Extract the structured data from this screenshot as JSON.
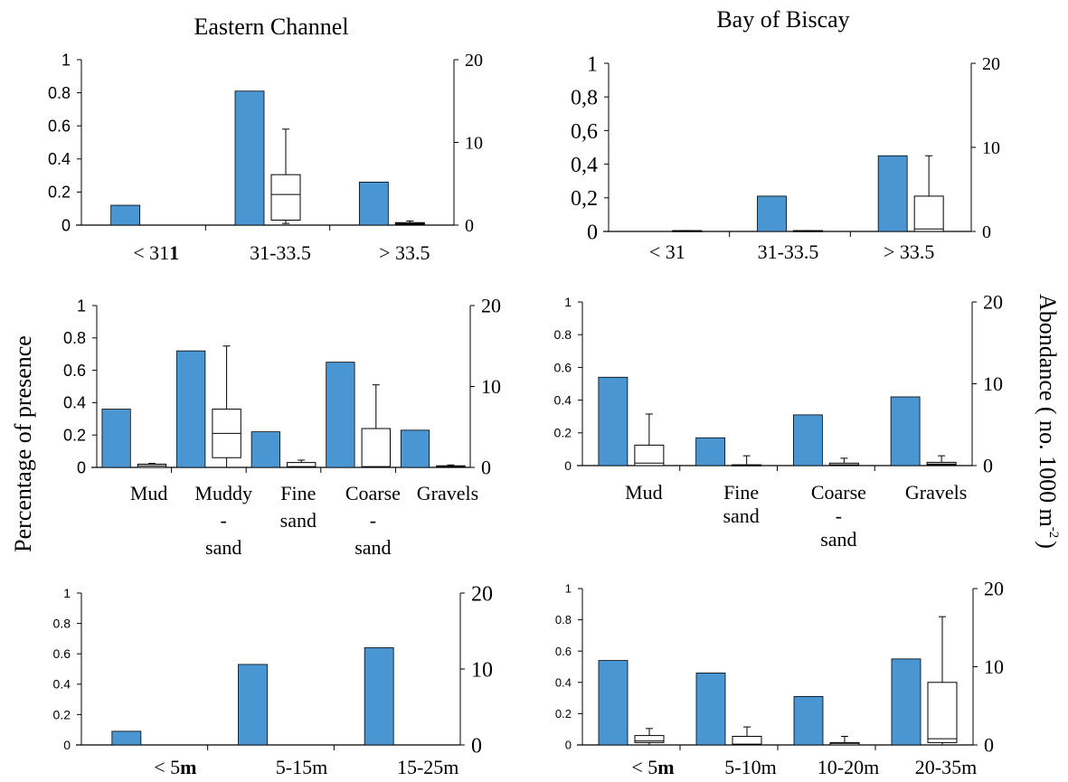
{
  "column_titles": [
    "Eastern Channel",
    "Bay of Biscay"
  ],
  "left_axis_title": "Percentage of presence",
  "right_axis_title": "Abondance ( no. 1000 m",
  "right_axis_title_sup": "-2",
  "right_axis_title_end": ")",
  "bar_color": "#4a96d2",
  "chart_data": [
    {
      "type": "bar",
      "title": "Eastern Channel",
      "categories": [
        [
          "< 31"
        ],
        [
          "31-33.5"
        ],
        [
          "> 33.5"
        ]
      ],
      "category_bold_suffix": [
        "1",
        "",
        ""
      ],
      "y_ticks": [
        "0",
        "0.2",
        "0.4",
        "0.6",
        "0.8",
        "1"
      ],
      "y2_ticks": [
        "0",
        "10",
        "20"
      ],
      "ylim": [
        0,
        1
      ],
      "y2lim": [
        0,
        20
      ],
      "presence": [
        0.12,
        0.81,
        0.26
      ],
      "abundance_boxes": [
        null,
        {
          "min": 0.2,
          "q1": 0.6,
          "median": 3.7,
          "q3": 6.1,
          "max": 11.6
        },
        {
          "min": 0.1,
          "q1": 0.1,
          "median": 0.2,
          "q3": 0.3,
          "max": 0.5
        }
      ]
    },
    {
      "type": "bar",
      "title": "Bay of Biscay",
      "categories": [
        [
          "< 31"
        ],
        [
          "31-33.5"
        ],
        [
          "> 33.5"
        ]
      ],
      "category_bold_suffix": [
        "",
        "",
        ""
      ],
      "y_ticks": [
        "0",
        "0,2",
        "0,4",
        "0,6",
        "0,8",
        "1"
      ],
      "y2_ticks": [
        "0",
        "10",
        "20"
      ],
      "ylim": [
        0,
        1
      ],
      "y2lim": [
        0,
        20
      ],
      "presence": [
        0.0,
        0.21,
        0.45
      ],
      "abundance_boxes": [
        {
          "min": 0.0,
          "q1": 0.0,
          "median": 0.0,
          "q3": 0.1,
          "max": 0.1
        },
        {
          "min": 0.0,
          "q1": 0.0,
          "median": 0.0,
          "q3": 0.1,
          "max": 0.1
        },
        {
          "min": 0.0,
          "q1": 0.0,
          "median": 0.3,
          "q3": 4.2,
          "max": 9.0
        }
      ]
    },
    {
      "type": "bar",
      "title": "",
      "categories": [
        [
          "Mud"
        ],
        [
          "Muddy",
          "-",
          "sand"
        ],
        [
          "Fine",
          "sand"
        ],
        [
          "Coarse",
          "-",
          "sand"
        ],
        [
          "Gravels"
        ]
      ],
      "category_bold_suffix": [
        "",
        "",
        "",
        "",
        ""
      ],
      "y_ticks": [
        "0",
        "0.2",
        "0.4",
        "0.6",
        "0.8",
        "1"
      ],
      "y2_ticks": [
        "0",
        "10",
        "20"
      ],
      "ylim": [
        0,
        1
      ],
      "y2lim": [
        0,
        20
      ],
      "presence": [
        0.36,
        0.72,
        0.22,
        0.65,
        0.23
      ],
      "abundance_boxes": [
        {
          "min": 0.0,
          "q1": 0.0,
          "median": 0.2,
          "q3": 0.4,
          "max": 0.5
        },
        {
          "min": 0.0,
          "q1": 1.2,
          "median": 4.2,
          "q3": 7.2,
          "max": 15.0
        },
        {
          "min": 0.0,
          "q1": 0.0,
          "median": 0.1,
          "q3": 0.6,
          "max": 0.9
        },
        {
          "min": 0.0,
          "q1": 0.0,
          "median": 0.1,
          "q3": 4.8,
          "max": 10.2
        },
        {
          "min": 0.0,
          "q1": 0.0,
          "median": 0.1,
          "q3": 0.2,
          "max": 0.3
        }
      ]
    },
    {
      "type": "bar",
      "title": "",
      "categories": [
        [
          "Mud"
        ],
        [
          "Fine",
          "sand"
        ],
        [
          "Coarse",
          "-",
          "sand"
        ],
        [
          "Gravels"
        ]
      ],
      "category_bold_suffix": [
        "",
        "",
        "",
        ""
      ],
      "y_ticks": [
        "0",
        "0.2",
        "0.4",
        "0.6",
        "0.8",
        "1"
      ],
      "y2_ticks": [
        "0",
        "10",
        "20"
      ],
      "ylim": [
        0,
        1
      ],
      "y2lim": [
        0,
        20
      ],
      "presence": [
        0.54,
        0.17,
        0.31,
        0.42
      ],
      "abundance_boxes": [
        {
          "min": 0.0,
          "q1": 0.0,
          "median": 0.3,
          "q3": 2.5,
          "max": 6.3
        },
        {
          "min": 0.0,
          "q1": 0.0,
          "median": 0.0,
          "q3": 0.1,
          "max": 1.2
        },
        {
          "min": 0.0,
          "q1": 0.0,
          "median": 0.1,
          "q3": 0.3,
          "max": 0.9
        },
        {
          "min": 0.0,
          "q1": 0.1,
          "median": 0.2,
          "q3": 0.4,
          "max": 1.2
        }
      ]
    },
    {
      "type": "bar",
      "title": "",
      "categories": [
        [
          "< 5"
        ],
        [
          "5-15m"
        ],
        [
          "15-25m"
        ]
      ],
      "category_bold_suffix": [
        "m",
        "",
        ""
      ],
      "y_ticks": [
        "0",
        "0.2",
        "0.4",
        "0.6",
        "0.8",
        "1"
      ],
      "y2_ticks": [
        "0",
        "10",
        "20"
      ],
      "ylim": [
        0,
        1
      ],
      "y2lim": [
        0,
        20
      ],
      "presence": [
        0.09,
        0.53,
        0.64
      ],
      "abundance_boxes": [
        null,
        null,
        null
      ]
    },
    {
      "type": "bar",
      "title": "",
      "categories": [
        [
          "< 5"
        ],
        [
          "5-10m"
        ],
        [
          "10-20m"
        ],
        [
          "20-35m"
        ]
      ],
      "category_bold_suffix": [
        "m",
        "",
        "",
        ""
      ],
      "y_ticks": [
        "0",
        "0.2",
        "0.4",
        "0.6",
        "0.8",
        "1"
      ],
      "y2_ticks": [
        "0",
        "10",
        "20"
      ],
      "ylim": [
        0,
        1
      ],
      "y2lim": [
        0,
        20
      ],
      "presence": [
        0.54,
        0.46,
        0.31,
        0.55
      ],
      "abundance_boxes": [
        {
          "min": 0.0,
          "q1": 0.3,
          "median": 0.5,
          "q3": 1.2,
          "max": 2.1
        },
        {
          "min": 0.0,
          "q1": 0.0,
          "median": 0.1,
          "q3": 1.1,
          "max": 2.3
        },
        {
          "min": 0.0,
          "q1": 0.0,
          "median": 0.2,
          "q3": 0.3,
          "max": 1.1
        },
        {
          "min": 0.0,
          "q1": 0.3,
          "median": 0.8,
          "q3": 8.0,
          "max": 16.4
        }
      ]
    }
  ]
}
